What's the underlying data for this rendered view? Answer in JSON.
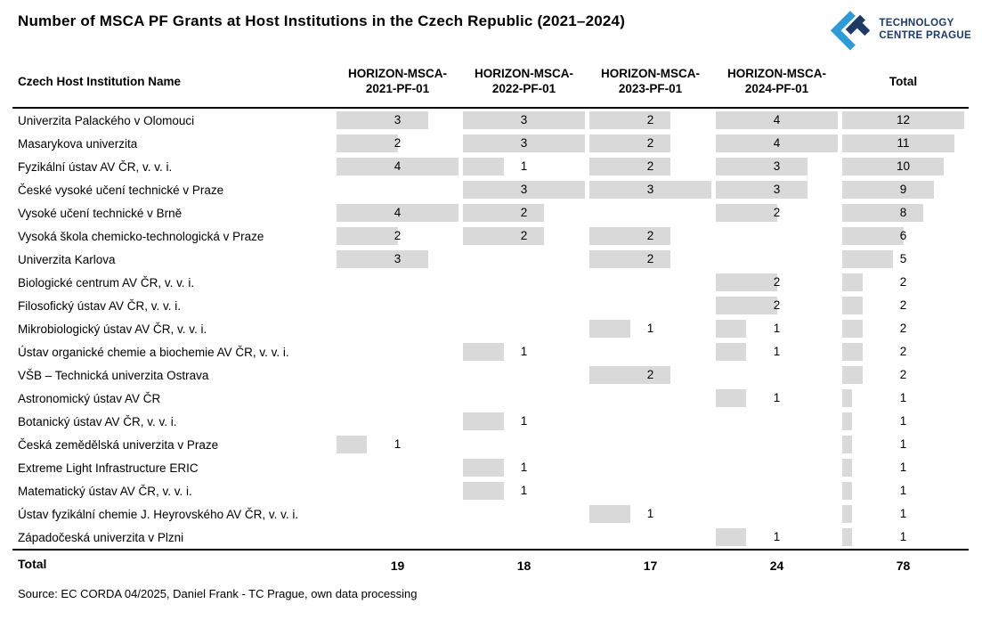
{
  "header": {
    "title": "Number of MSCA PF Grants at Host Institutions in the Czech Republic (2021–2024)",
    "logo": {
      "line1": "TECHNOLOGY",
      "line2": "CENTRE PRAGUE"
    }
  },
  "colors": {
    "bar": "#D9D9D9",
    "logo_light_blue": "#2E9AD6",
    "logo_dark_blue": "#1E3A66",
    "rule_line": "#000000"
  },
  "table": {
    "name_header": "Czech Host Institution Name",
    "column_headers": [
      "HORIZON-MSCA-\n2021-PF-01",
      "HORIZON-MSCA-\n2022-PF-01",
      "HORIZON-MSCA-\n2023-PF-01",
      "HORIZON-MSCA-\n2024-PF-01",
      "Total"
    ],
    "column_bar_max": [
      4,
      3,
      3,
      4,
      12
    ],
    "rows": [
      {
        "name": "Univerzita Palackého v Olomouci",
        "values": [
          3,
          3,
          2,
          4,
          12
        ]
      },
      {
        "name": "Masarykova univerzita",
        "values": [
          2,
          3,
          2,
          4,
          11
        ]
      },
      {
        "name": "Fyzikální ústav AV ČR, v. v. i.",
        "values": [
          4,
          1,
          2,
          3,
          10
        ]
      },
      {
        "name": "České vysoké učení technické v Praze",
        "values": [
          null,
          3,
          3,
          3,
          9
        ]
      },
      {
        "name": "Vysoké učení technické v Brně",
        "values": [
          4,
          2,
          null,
          2,
          8
        ]
      },
      {
        "name": "Vysoká škola chemicko-technologická v Praze",
        "values": [
          2,
          2,
          2,
          null,
          6
        ]
      },
      {
        "name": "Univerzita Karlova",
        "values": [
          3,
          null,
          2,
          null,
          5
        ]
      },
      {
        "name": "Biologické centrum AV ČR, v. v. i.",
        "values": [
          null,
          null,
          null,
          2,
          2
        ]
      },
      {
        "name": "Filosofický ústav AV ČR, v. v. i.",
        "values": [
          null,
          null,
          null,
          2,
          2
        ]
      },
      {
        "name": "Mikrobiologický ústav AV ČR, v. v. i.",
        "values": [
          null,
          null,
          1,
          1,
          2
        ]
      },
      {
        "name": "Ústav organické chemie a biochemie AV ČR, v. v. i.",
        "values": [
          null,
          1,
          null,
          1,
          2
        ]
      },
      {
        "name": "VŠB – Technická univerzita Ostrava",
        "values": [
          null,
          null,
          2,
          null,
          2
        ]
      },
      {
        "name": "Astronomický ústav AV ČR",
        "values": [
          null,
          null,
          null,
          1,
          1
        ]
      },
      {
        "name": "Botanický ústav AV ČR, v. v. i.",
        "values": [
          null,
          1,
          null,
          null,
          1
        ]
      },
      {
        "name": "Česká zemědělská univerzita v Praze",
        "values": [
          1,
          null,
          null,
          null,
          1
        ]
      },
      {
        "name": "Extreme Light Infrastructure ERIC",
        "values": [
          null,
          1,
          null,
          null,
          1
        ]
      },
      {
        "name": "Matematický ústav AV ČR, v. v. i.",
        "values": [
          null,
          1,
          null,
          null,
          1
        ]
      },
      {
        "name": "Ústav fyzikální chemie J. Heyrovského AV ČR, v. v. i.",
        "values": [
          null,
          null,
          1,
          null,
          1
        ]
      },
      {
        "name": "Západočeská univerzita v Plzni",
        "values": [
          null,
          null,
          null,
          1,
          1
        ]
      }
    ],
    "total_label": "Total",
    "totals": [
      19,
      18,
      17,
      24,
      78
    ]
  },
  "footer": {
    "source": "Source: EC CORDA 04/2025, Daniel Frank - TC Prague, own data processing"
  },
  "chart_data": {
    "type": "table",
    "title": "Number of MSCA PF Grants at Host Institutions in the Czech Republic (2021–2024)",
    "columns": [
      "Czech Host Institution Name",
      "HORIZON-MSCA-2021-PF-01",
      "HORIZON-MSCA-2022-PF-01",
      "HORIZON-MSCA-2023-PF-01",
      "HORIZON-MSCA-2024-PF-01",
      "Total"
    ],
    "cell_bar_style": "gray data bars, each column scaled to its own maximum [4, 3, 3, 4, 12]",
    "rows": [
      [
        "Univerzita Palackého v Olomouci",
        3,
        3,
        2,
        4,
        12
      ],
      [
        "Masarykova univerzita",
        2,
        3,
        2,
        4,
        11
      ],
      [
        "Fyzikální ústav AV ČR, v. v. i.",
        4,
        1,
        2,
        3,
        10
      ],
      [
        "České vysoké učení technické v Praze",
        null,
        3,
        3,
        3,
        9
      ],
      [
        "Vysoké učení technické v Brně",
        4,
        2,
        null,
        2,
        8
      ],
      [
        "Vysoká škola chemicko-technologická v Praze",
        2,
        2,
        2,
        null,
        6
      ],
      [
        "Univerzita Karlova",
        3,
        null,
        2,
        null,
        5
      ],
      [
        "Biologické centrum AV ČR, v. v. i.",
        null,
        null,
        null,
        2,
        2
      ],
      [
        "Filosofický ústav AV ČR, v. v. i.",
        null,
        null,
        null,
        2,
        2
      ],
      [
        "Mikrobiologický ústav AV ČR, v. v. i.",
        null,
        null,
        1,
        1,
        2
      ],
      [
        "Ústav organické chemie a biochemie AV ČR, v. v. i.",
        null,
        1,
        null,
        1,
        2
      ],
      [
        "VŠB – Technická univerzita Ostrava",
        null,
        null,
        2,
        null,
        2
      ],
      [
        "Astronomický ústav AV ČR",
        null,
        null,
        null,
        1,
        1
      ],
      [
        "Botanický ústav AV ČR, v. v. i.",
        null,
        1,
        null,
        null,
        1
      ],
      [
        "Česká zemědělská univerzita v Praze",
        1,
        null,
        null,
        null,
        1
      ],
      [
        "Extreme Light Infrastructure ERIC",
        null,
        1,
        null,
        null,
        1
      ],
      [
        "Matematický ústav AV ČR, v. v. i.",
        null,
        1,
        null,
        null,
        1
      ],
      [
        "Ústav fyzikální chemie J. Heyrovského AV ČR, v. v. i.",
        null,
        null,
        1,
        null,
        1
      ],
      [
        "Západočeská univerzita v Plzni",
        null,
        null,
        null,
        1,
        1
      ]
    ],
    "totals_row": [
      "Total",
      19,
      18,
      17,
      24,
      78
    ]
  }
}
